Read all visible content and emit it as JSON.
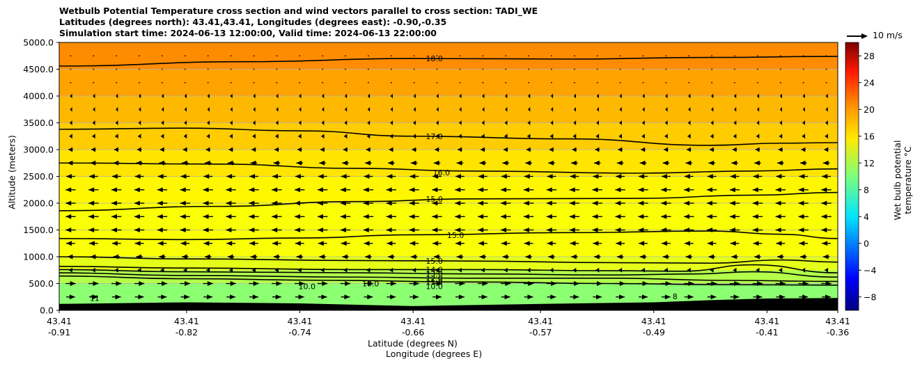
{
  "title_lines": [
    "Wetbulb Potential Temperature cross section and wind vectors parallel to cross section: TADI_WE",
    "Latitudes (degrees north): 43.41,43.41, Longitudes (degrees east): -0.90,-0.35",
    "Simulation start time: 2024-06-13 12:00:00, Valid time: 2024-06-13 22:00:00"
  ],
  "wind_key_label": "10 m/s",
  "colors": {
    "terrain": "#000000",
    "gridline": "#b0b0b0",
    "contour": "#000000"
  },
  "chart_data": {
    "type": "contourf",
    "xlabel": "Latitude (degrees N)",
    "xlabel2": "Longitude (degrees E)",
    "ylabel": "Altitude (meters)",
    "ylim": [
      0,
      5000
    ],
    "y_ticks": [
      "0.0",
      "500.0",
      "1000.0",
      "1500.0",
      "2000.0",
      "2500.0",
      "3000.0",
      "3500.0",
      "4000.0",
      "4500.0",
      "5000.0"
    ],
    "x_ticks": [
      {
        "lat": "43.41",
        "lon": "-0.91"
      },
      {
        "lat": "43.41",
        "lon": "-0.82"
      },
      {
        "lat": "43.41",
        "lon": "-0.74"
      },
      {
        "lat": "43.41",
        "lon": "-0.66"
      },
      {
        "lat": "43.41",
        "lon": "-0.57"
      },
      {
        "lat": "43.41",
        "lon": "-0.49"
      },
      {
        "lat": "43.41",
        "lon": "-0.41"
      },
      {
        "lat": "43.41",
        "lon": "-0.36"
      }
    ],
    "colorbar": {
      "label": "Wet bulb potential temperature $^\\circ$C",
      "label_display": "Wet bulb potential temperature °C",
      "range": [
        -10,
        30
      ],
      "ticks": [
        "28",
        "24",
        "20",
        "16",
        "12",
        "8",
        "4",
        "0",
        "−4",
        "−8"
      ],
      "tick_values": [
        28,
        24,
        20,
        16,
        12,
        8,
        4,
        0,
        -4,
        -8
      ],
      "colormap": "jet"
    },
    "contour_labels": [
      {
        "text": "18.0",
        "lon": -0.645,
        "alt": 4700
      },
      {
        "text": "17.0",
        "lon": -0.645,
        "alt": 3250
      },
      {
        "text": "16.0",
        "lon": -0.64,
        "alt": 2570
      },
      {
        "text": "15.0",
        "lon": -0.645,
        "alt": 2080
      },
      {
        "text": "15.0",
        "lon": -0.63,
        "alt": 1400
      },
      {
        "text": "15.0",
        "lon": -0.645,
        "alt": 920
      },
      {
        "text": "14.0",
        "lon": -0.645,
        "alt": 760
      },
      {
        "text": "13.0",
        "lon": -0.645,
        "alt": 680
      },
      {
        "text": "12.0",
        "lon": -0.645,
        "alt": 600
      },
      {
        "text": "11.0",
        "lon": -0.645,
        "alt": 530
      },
      {
        "text": "10.0",
        "lon": -0.645,
        "alt": 450
      },
      {
        "text": "10.0",
        "lon": -0.735,
        "alt": 450
      },
      {
        "text": "10.0",
        "lon": -0.69,
        "alt": 500
      },
      {
        "text": "11",
        "lon": -0.885,
        "alt": 230
      },
      {
        "text": "8",
        "lon": -0.475,
        "alt": 260
      }
    ],
    "contours": [
      {
        "level": "18.0",
        "points": [
          [
            -0.91,
            4560
          ],
          [
            -0.78,
            4640
          ],
          [
            -0.66,
            4700
          ],
          [
            -0.55,
            4690
          ],
          [
            -0.45,
            4720
          ],
          [
            -0.36,
            4740
          ]
        ]
      },
      {
        "level": "17.0",
        "points": [
          [
            -0.91,
            3380
          ],
          [
            -0.82,
            3400
          ],
          [
            -0.74,
            3350
          ],
          [
            -0.66,
            3250
          ],
          [
            -0.55,
            3200
          ],
          [
            -0.45,
            3080
          ],
          [
            -0.4,
            3120
          ],
          [
            -0.36,
            3130
          ]
        ]
      },
      {
        "level": "16.0",
        "points": [
          [
            -0.91,
            2750
          ],
          [
            -0.8,
            2730
          ],
          [
            -0.7,
            2650
          ],
          [
            -0.62,
            2600
          ],
          [
            -0.5,
            2560
          ],
          [
            -0.42,
            2600
          ],
          [
            -0.36,
            2640
          ]
        ]
      },
      {
        "level": "15.0",
        "points": [
          [
            -0.91,
            1860
          ],
          [
            -0.8,
            1940
          ],
          [
            -0.7,
            2030
          ],
          [
            -0.62,
            2080
          ],
          [
            -0.5,
            2090
          ],
          [
            -0.42,
            2150
          ],
          [
            -0.36,
            2200
          ]
        ]
      },
      {
        "level": "15.0",
        "points": [
          [
            -0.91,
            1340
          ],
          [
            -0.82,
            1320
          ],
          [
            -0.74,
            1350
          ],
          [
            -0.66,
            1410
          ],
          [
            -0.55,
            1450
          ],
          [
            -0.45,
            1480
          ],
          [
            -0.4,
            1420
          ],
          [
            -0.36,
            1340
          ]
        ]
      },
      {
        "level": "15.0",
        "points": [
          [
            -0.91,
            1000
          ],
          [
            -0.82,
            960
          ],
          [
            -0.7,
            930
          ],
          [
            -0.62,
            920
          ],
          [
            -0.52,
            890
          ],
          [
            -0.45,
            880
          ],
          [
            -0.4,
            940
          ],
          [
            -0.36,
            900
          ]
        ]
      },
      {
        "level": "14.0",
        "points": [
          [
            -0.91,
            820
          ],
          [
            -0.82,
            790
          ],
          [
            -0.7,
            760
          ],
          [
            -0.62,
            760
          ],
          [
            -0.52,
            740
          ],
          [
            -0.47,
            730
          ],
          [
            -0.42,
            850
          ],
          [
            -0.36,
            700
          ]
        ]
      },
      {
        "level": "13.0",
        "points": [
          [
            -0.91,
            760
          ],
          [
            -0.82,
            720
          ],
          [
            -0.7,
            700
          ],
          [
            -0.62,
            680
          ],
          [
            -0.52,
            660
          ],
          [
            -0.46,
            680
          ],
          [
            -0.42,
            720
          ],
          [
            -0.36,
            620
          ]
        ]
      },
      {
        "level": "12.0",
        "points": [
          [
            -0.91,
            700
          ],
          [
            -0.82,
            650
          ],
          [
            -0.7,
            620
          ],
          [
            -0.62,
            600
          ],
          [
            -0.52,
            600
          ],
          [
            -0.44,
            560
          ],
          [
            -0.36,
            540
          ]
        ]
      },
      {
        "level": "11.0",
        "points": [
          [
            -0.91,
            640
          ],
          [
            -0.82,
            590
          ],
          [
            -0.72,
            560
          ],
          [
            -0.62,
            530
          ],
          [
            -0.52,
            500
          ],
          [
            -0.44,
            480
          ],
          [
            -0.36,
            470
          ]
        ]
      }
    ],
    "wind_vectors": [
      {
        "alt": 4750,
        "u": 0.2,
        "dir": "calm"
      },
      {
        "alt": 4500,
        "u": 0.2,
        "dir": "calm"
      },
      {
        "alt": 4250,
        "u": 0.2,
        "dir": "calm"
      },
      {
        "alt": 4000,
        "u": -0.5,
        "dir": "west"
      },
      {
        "alt": 3750,
        "u": -0.5,
        "dir": "west"
      },
      {
        "alt": 3500,
        "u": -0.8,
        "dir": "west"
      },
      {
        "alt": 3250,
        "u": -1.2,
        "dir": "west"
      },
      {
        "alt": 3000,
        "u": -2.0,
        "dir": "west"
      },
      {
        "alt": 2750,
        "u": -3.0,
        "dir": "west"
      },
      {
        "alt": 2500,
        "u": -4.0,
        "dir": "west"
      },
      {
        "alt": 2250,
        "u": -4.5,
        "dir": "west"
      },
      {
        "alt": 2000,
        "u": -4.5,
        "dir": "west"
      },
      {
        "alt": 1750,
        "u": -4.5,
        "dir": "west"
      },
      {
        "alt": 1500,
        "u": -4.5,
        "dir": "west"
      },
      {
        "alt": 1250,
        "u": -4.0,
        "dir": "west"
      },
      {
        "alt": 1000,
        "u": -3.0,
        "dir": "west"
      },
      {
        "alt": 750,
        "u": -1.5,
        "dir": "west"
      },
      {
        "alt": 500,
        "u": 4.5,
        "dir": "east"
      },
      {
        "alt": 250,
        "u": 4.0,
        "dir": "east"
      }
    ],
    "temperature_bands": [
      {
        "alt_from": 4500,
        "alt_to": 5000,
        "temp": 19.5
      },
      {
        "alt_from": 4000,
        "alt_to": 4500,
        "temp": 18.6
      },
      {
        "alt_from": 3500,
        "alt_to": 4000,
        "temp": 17.8
      },
      {
        "alt_from": 3000,
        "alt_to": 3500,
        "temp": 17.0
      },
      {
        "alt_from": 2500,
        "alt_to": 3000,
        "temp": 16.0
      },
      {
        "alt_from": 2000,
        "alt_to": 2500,
        "temp": 15.3
      },
      {
        "alt_from": 1000,
        "alt_to": 2000,
        "temp": 14.8
      },
      {
        "alt_from": 750,
        "alt_to": 1000,
        "temp": 14.0
      },
      {
        "alt_from": 500,
        "alt_to": 750,
        "temp": 12.0
      },
      {
        "alt_from": 0,
        "alt_to": 500,
        "temp": 10.5
      }
    ],
    "terrain_profile": [
      [
        -0.91,
        120
      ],
      [
        -0.82,
        150
      ],
      [
        -0.74,
        130
      ],
      [
        -0.66,
        80
      ],
      [
        -0.57,
        120
      ],
      [
        -0.49,
        150
      ],
      [
        -0.45,
        190
      ],
      [
        -0.41,
        220
      ],
      [
        -0.36,
        230
      ]
    ]
  }
}
